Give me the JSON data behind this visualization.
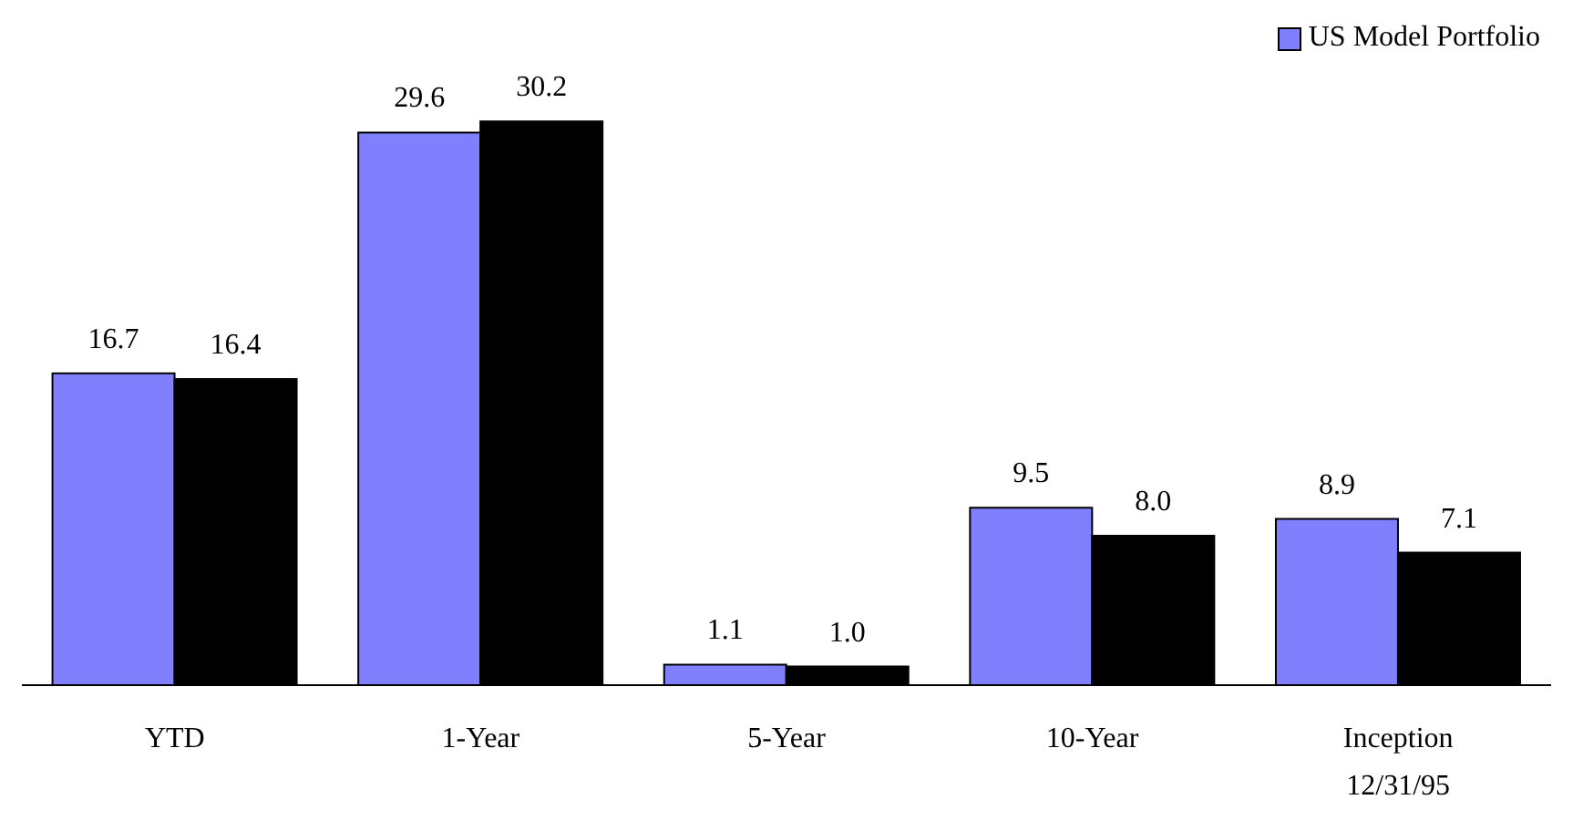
{
  "chart_data": {
    "type": "bar",
    "categories": [
      "YTD",
      "1-Year",
      "5-Year",
      "10-Year",
      "Inception\n12/31/95"
    ],
    "series": [
      {
        "name": "US Model Portfolio",
        "color": "#8080ff",
        "values": [
          16.7,
          29.6,
          1.1,
          9.5,
          8.9
        ],
        "value_labels": [
          "16.7",
          "29.6",
          "1.1",
          "9.5",
          "8.9"
        ]
      },
      {
        "color": "#000000",
        "values": [
          16.4,
          30.2,
          1.0,
          8.0,
          7.1
        ],
        "value_labels": [
          "16.4",
          "30.2",
          "1.0",
          "8.0",
          "7.1"
        ]
      }
    ],
    "legend": "top right",
    "grid": false
  }
}
